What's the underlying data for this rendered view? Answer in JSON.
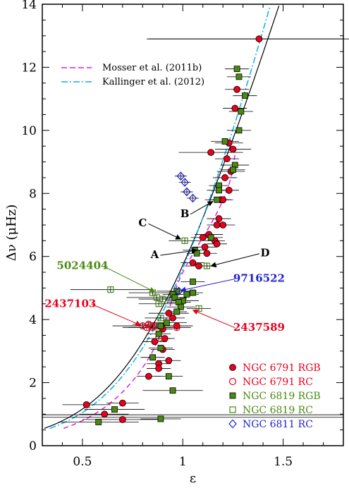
{
  "chart_data": {
    "type": "scatter",
    "xlabel": "ε",
    "ylabel": "Δν (μHz)",
    "xlim": [
      0.3,
      1.8
    ],
    "ylim": [
      0,
      14
    ],
    "xticks": [
      "0.5",
      "1",
      "1.5"
    ],
    "yticks": [
      "0",
      "2",
      "4",
      "6",
      "8",
      "10",
      "12",
      "14"
    ],
    "colors": {
      "red": "#e8001c",
      "green": "#4a8a10",
      "blue": "#2020d0",
      "magenta": "#e020e0",
      "cyan": "#10b0e0"
    },
    "model_lines": [
      {
        "name": "Mosser et al. (2011b)",
        "style": "dashed",
        "color": "#e020e0"
      },
      {
        "name": "Kallinger et al. (2012)",
        "style": "dash-dot",
        "color": "#10b0e0"
      }
    ],
    "series": [
      {
        "name": "NGC 6791 RGB",
        "marker": "filled-circle",
        "color": "#e8001c",
        "points": [
          [
            1.38,
            12.9,
            0.55
          ],
          [
            1.27,
            11.3,
            0.06
          ],
          [
            1.26,
            10.7,
            0.06
          ],
          [
            1.23,
            9.6,
            0.07
          ],
          [
            1.25,
            9.4,
            0.09
          ],
          [
            1.14,
            9.3,
            0.16
          ],
          [
            1.22,
            9.1,
            0.06
          ],
          [
            1.24,
            8.7,
            0.07
          ],
          [
            1.21,
            8.5,
            0.06
          ],
          [
            1.23,
            8.1,
            0.05
          ],
          [
            1.19,
            7.8,
            0.05
          ],
          [
            1.2,
            7.8,
            0.05
          ],
          [
            1.18,
            7.2,
            0.06
          ],
          [
            1.2,
            7.0,
            0.06
          ],
          [
            1.17,
            7.0,
            0.05
          ],
          [
            1.13,
            6.7,
            0.07
          ],
          [
            1.1,
            6.6,
            0.06
          ],
          [
            1.16,
            6.5,
            0.05
          ],
          [
            1.17,
            6.4,
            0.05
          ],
          [
            1.11,
            6.3,
            0.06
          ],
          [
            1.12,
            6.1,
            0.05
          ],
          [
            1.05,
            5.8,
            0.06
          ],
          [
            1.08,
            5.7,
            0.06
          ],
          [
            0.93,
            4.2,
            0.1
          ],
          [
            0.95,
            4.05,
            0.06
          ],
          [
            0.97,
            3.8,
            0.08
          ],
          [
            0.9,
            3.7,
            0.05
          ],
          [
            0.91,
            3.4,
            0.05
          ],
          [
            0.86,
            3.3,
            0.06
          ],
          [
            0.9,
            3.05,
            0.06
          ],
          [
            0.93,
            2.7,
            0.06
          ],
          [
            0.88,
            2.6,
            0.06
          ],
          [
            0.88,
            2.45,
            0.06
          ],
          [
            0.83,
            2.2,
            0.06
          ],
          [
            0.7,
            1.35,
            0.08
          ],
          [
            0.52,
            1.3,
            0.12
          ],
          [
            0.61,
            1.0,
            0.12
          ],
          [
            0.7,
            0.83,
            0.2
          ]
        ]
      },
      {
        "name": "NGC 6791 RC",
        "marker": "open-circle",
        "color": "#e8001c",
        "points": [
          [
            0.8,
            3.8,
            0.15
          ],
          [
            0.82,
            3.75,
            0.12
          ],
          [
            0.84,
            3.8,
            0.1
          ],
          [
            0.85,
            3.75,
            0.12
          ],
          [
            0.87,
            3.8,
            0.1
          ],
          [
            0.83,
            3.85,
            0.08
          ],
          [
            0.88,
            3.4,
            0.06
          ],
          [
            0.97,
            3.75,
            0.07
          ]
        ]
      },
      {
        "name": "NGC 6819 RGB",
        "marker": "filled-square",
        "color": "#4a8a10",
        "points": [
          [
            1.27,
            11.95,
            0.06
          ],
          [
            1.28,
            11.7,
            0.06
          ],
          [
            1.31,
            11.1,
            0.06
          ],
          [
            1.29,
            10.6,
            0.06
          ],
          [
            1.28,
            10.0,
            0.06
          ],
          [
            1.21,
            9.65,
            0.07
          ],
          [
            1.26,
            8.9,
            0.07
          ],
          [
            1.25,
            8.75,
            0.06
          ],
          [
            1.18,
            8.25,
            0.05
          ],
          [
            1.18,
            8.1,
            0.06
          ],
          [
            1.17,
            7.8,
            0.06
          ],
          [
            1.14,
            6.6,
            0.06
          ],
          [
            1.06,
            6.2,
            0.06
          ],
          [
            1.07,
            6.1,
            0.05
          ],
          [
            1.05,
            5.2,
            0.06
          ],
          [
            0.97,
            4.9,
            0.1
          ],
          [
            1.05,
            4.85,
            0.05
          ],
          [
            1.02,
            4.8,
            0.06
          ],
          [
            0.95,
            4.8,
            0.05
          ],
          [
            0.96,
            4.7,
            0.06
          ],
          [
            1.0,
            4.6,
            0.08
          ],
          [
            0.98,
            4.55,
            0.06
          ],
          [
            0.99,
            4.4,
            0.07
          ],
          [
            0.97,
            4.25,
            0.05
          ],
          [
            0.92,
            3.9,
            0.1
          ],
          [
            0.89,
            3.8,
            0.06
          ],
          [
            0.88,
            3.55,
            0.06
          ],
          [
            0.89,
            3.1,
            0.06
          ],
          [
            0.85,
            2.8,
            0.06
          ],
          [
            0.93,
            2.2,
            0.07
          ],
          [
            0.95,
            1.75,
            0.15
          ],
          [
            0.66,
            1.15,
            0.15
          ],
          [
            0.58,
            0.75,
            0.2
          ],
          [
            0.89,
            0.85,
            0.1
          ]
        ]
      },
      {
        "name": "NGC 6819 RC",
        "marker": "open-square",
        "color": "#4a8a10",
        "points": [
          [
            1.01,
            6.5,
            0.08
          ],
          [
            1.12,
            5.7,
            0.05
          ],
          [
            0.64,
            4.95,
            0.2
          ],
          [
            0.85,
            4.85,
            0.12
          ],
          [
            0.87,
            4.7,
            0.15
          ],
          [
            0.9,
            4.65,
            0.12
          ],
          [
            0.88,
            4.5,
            0.1
          ],
          [
            0.89,
            4.05,
            0.08
          ],
          [
            1.08,
            4.35,
            0.06
          ]
        ]
      },
      {
        "name": "NGC 6811 RC",
        "marker": "open-diamond",
        "color": "#2020d0",
        "points": [
          [
            0.99,
            8.55,
            0.03
          ],
          [
            1.01,
            8.35,
            0.03
          ],
          [
            1.02,
            8.05,
            0.03
          ],
          [
            1.05,
            7.85,
            0.03
          ],
          [
            0.98,
            4.9,
            0.06
          ]
        ]
      }
    ],
    "annotations": [
      {
        "label": "A",
        "color": "#000000",
        "tx": 0.86,
        "ty": 5.95,
        "ax": 1.07,
        "ay": 6.2
      },
      {
        "label": "B",
        "color": "#000000",
        "tx": 1.01,
        "ty": 7.25,
        "ax": 1.15,
        "ay": 7.75
      },
      {
        "label": "C",
        "color": "#000000",
        "tx": 0.8,
        "ty": 6.95,
        "ax": 0.99,
        "ay": 6.55
      },
      {
        "label": "D",
        "color": "#000000",
        "tx": 1.41,
        "ty": 6.0,
        "ax": 1.14,
        "ay": 5.7
      },
      {
        "label": "5024404",
        "color": "#4a8a10",
        "tx": 0.5,
        "ty": 5.6,
        "ax": 0.86,
        "ay": 4.88
      },
      {
        "label": "9716522",
        "color": "#2020d0",
        "tx": 1.38,
        "ty": 5.2,
        "ax": 0.99,
        "ay": 4.92
      },
      {
        "label": "2437103",
        "color": "#e8001c",
        "tx": 0.44,
        "ty": 4.4,
        "ax": 0.79,
        "ay": 3.82
      },
      {
        "label": "2437589",
        "color": "#e8001c",
        "tx": 1.38,
        "ty": 3.65,
        "ax": 1.05,
        "ay": 4.3
      }
    ]
  }
}
